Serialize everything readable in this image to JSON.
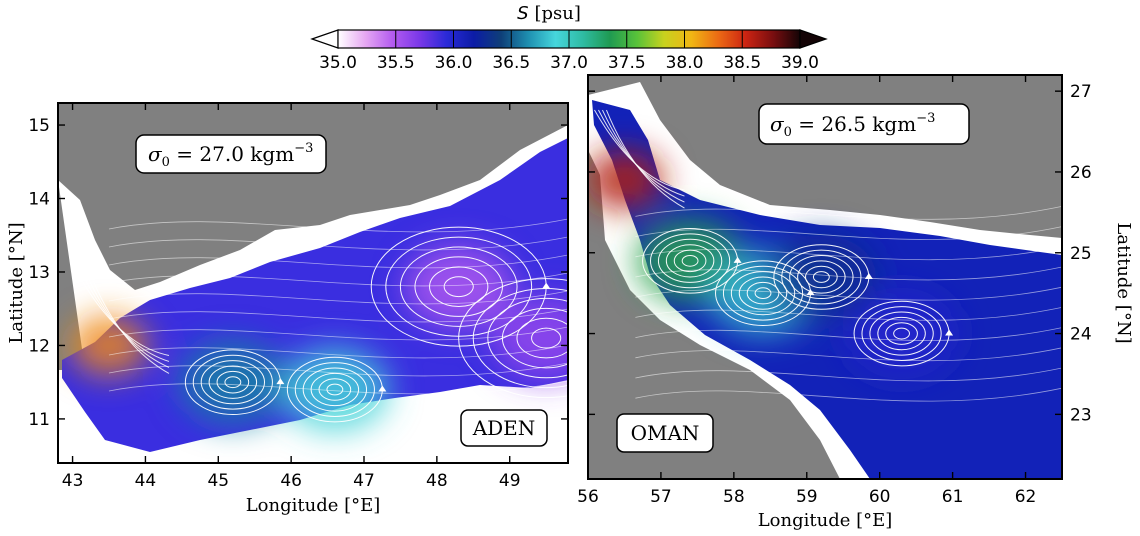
{
  "colorbar": {
    "title": "S [psu]",
    "title_symbol": "S",
    "title_unit": "[psu]",
    "ticks": [
      "35.0",
      "35.5",
      "36.0",
      "36.5",
      "37.0",
      "37.5",
      "38.0",
      "38.5",
      "39.0"
    ],
    "range": [
      35.0,
      39.0
    ],
    "colors": [
      "#ffffff",
      "#e6a8f2",
      "#b45cf0",
      "#7a38e8",
      "#2a2ad8",
      "#0c1ca6",
      "#0e3f78",
      "#1e8fb0",
      "#46d6dc",
      "#2fbca4",
      "#1f9a52",
      "#58c23a",
      "#c8d21e",
      "#f0b614",
      "#ec6a14",
      "#cc2412",
      "#7a0e10",
      "#140406"
    ]
  },
  "chart_data": [
    {
      "type": "heatmap",
      "title": "",
      "region_label": "ADEN",
      "annotation": "σ0 = 27.0 kgm−3",
      "annotation_symbol": "σ",
      "annotation_sub": "0",
      "annotation_value": " = 27.0 kgm",
      "annotation_sup": "−3",
      "xlabel": "Longitude [°E]",
      "ylabel": "Latitude [°N]",
      "xlim": [
        42.8,
        49.8
      ],
      "ylim": [
        10.4,
        15.3
      ],
      "xticks": [
        "43",
        "44",
        "45",
        "46",
        "47",
        "48",
        "49"
      ],
      "yticks": [
        "11",
        "12",
        "13",
        "14",
        "15"
      ],
      "variable": "Salinity S (psu) with streamlines",
      "colorbar_range": [
        35.0,
        39.0
      ],
      "features": [
        {
          "kind": "eddy",
          "lon": 48.3,
          "lat": 12.8,
          "salinity": 35.5
        },
        {
          "kind": "eddy",
          "lon": 45.2,
          "lat": 11.5,
          "salinity": 36.6
        },
        {
          "kind": "eddy",
          "lon": 46.6,
          "lat": 11.4,
          "salinity": 36.9
        },
        {
          "kind": "eddy",
          "lon": 49.5,
          "lat": 12.1,
          "salinity": 35.6
        },
        {
          "kind": "outflow",
          "lon": 43.5,
          "lat": 12.0,
          "salinity": 38.2
        }
      ]
    },
    {
      "type": "heatmap",
      "title": "",
      "region_label": "OMAN",
      "annotation": "σ0 = 26.5 kgm−3",
      "annotation_symbol": "σ",
      "annotation_sub": "0",
      "annotation_value": " = 26.5 kgm",
      "annotation_sup": "−3",
      "xlabel": "Longitude [°E]",
      "ylabel": "Latitude [°N]",
      "xlim": [
        56.0,
        62.5
      ],
      "ylim": [
        22.2,
        27.2
      ],
      "xticks": [
        "56",
        "57",
        "58",
        "59",
        "60",
        "61",
        "62"
      ],
      "yticks": [
        "23",
        "24",
        "25",
        "26",
        "27"
      ],
      "variable": "Salinity S (psu) with streamlines",
      "colorbar_range": [
        35.0,
        39.0
      ],
      "features": [
        {
          "kind": "eddy",
          "lon": 57.4,
          "lat": 24.9,
          "salinity": 37.4
        },
        {
          "kind": "eddy",
          "lon": 58.4,
          "lat": 24.5,
          "salinity": 36.8
        },
        {
          "kind": "eddy",
          "lon": 59.2,
          "lat": 24.7,
          "salinity": 36.3
        },
        {
          "kind": "eddy",
          "lon": 60.3,
          "lat": 24.0,
          "salinity": 36.0
        },
        {
          "kind": "outflow",
          "lon": 56.5,
          "lat": 25.9,
          "salinity": 38.6
        }
      ]
    }
  ]
}
